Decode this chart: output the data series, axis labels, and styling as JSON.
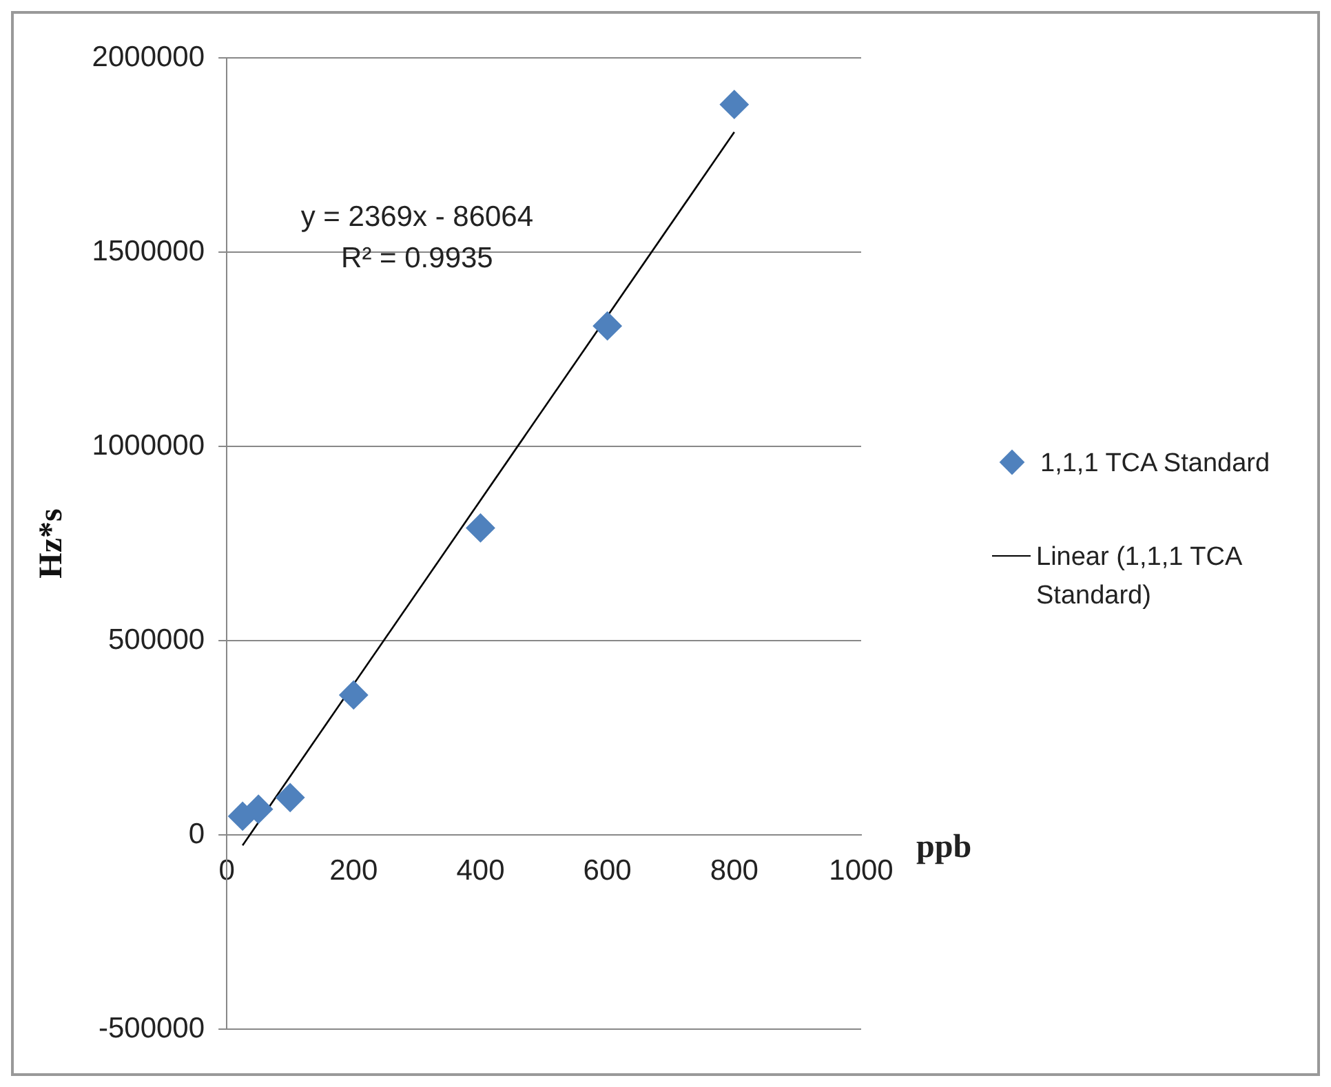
{
  "chart_data": {
    "type": "scatter",
    "xlabel": "ppb",
    "ylabel": "Hz*s",
    "annotations": [
      "y = 2369x - 86064",
      "R² = 0.9935"
    ],
    "series": [
      {
        "name": "1,1,1 TCA Standard",
        "type": "scatter",
        "color": "#4f81bd",
        "marker": "diamond",
        "x": [
          25,
          50,
          100,
          200,
          400,
          600,
          800
        ],
        "values": [
          48000,
          66000,
          96000,
          360000,
          790000,
          1310000,
          1880000
        ]
      },
      {
        "name": "Linear (1,1,1 TCA Standard)",
        "type": "line",
        "color": "#000000",
        "marker": "none",
        "line_style": "solid",
        "x": [
          25,
          800
        ],
        "values": [
          -27000,
          1809000
        ]
      }
    ],
    "xlim": [
      0,
      1000
    ],
    "xticks": [
      0,
      200,
      400,
      600,
      800,
      1000
    ],
    "ylim": [
      -500000,
      2000000
    ],
    "yticks": [
      -500000,
      0,
      500000,
      1000000,
      1500000,
      2000000
    ],
    "grid": "y",
    "legend": "right"
  }
}
